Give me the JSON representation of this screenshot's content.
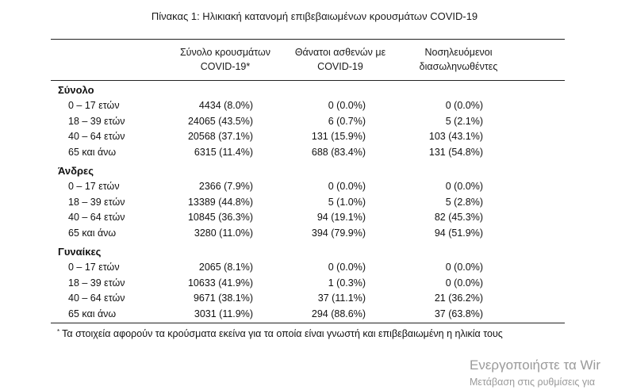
{
  "caption": "Πίνακας 1: Ηλικιακή κατανομή επιβεβαιωμένων κρουσμάτων COVID-19",
  "columns": {
    "total": {
      "line1": "Σύνολο κρουσμάτων",
      "line2": "COVID-19*"
    },
    "deaths": {
      "line1": "Θάνατοι ασθενών με",
      "line2": "COVID-19"
    },
    "hospitalized": {
      "line1": "Νοσηλευόμενοι",
      "line2": "διασωληνωθέντες"
    }
  },
  "groups": [
    {
      "title": "Σύνολο",
      "rows": [
        {
          "label": "0 – 17 ετών",
          "total": "4434 (8.0%)",
          "deaths": "0 (0.0%)",
          "hospitalized": "0 (0.0%)"
        },
        {
          "label": "18 – 39 ετών",
          "total": "24065 (43.5%)",
          "deaths": "6 (0.7%)",
          "hospitalized": "5 (2.1%)"
        },
        {
          "label": "40 – 64 ετών",
          "total": "20568 (37.1%)",
          "deaths": "131 (15.9%)",
          "hospitalized": "103 (43.1%)"
        },
        {
          "label": "65 και άνω",
          "total": "6315 (11.4%)",
          "deaths": "688 (83.4%)",
          "hospitalized": "131 (54.8%)"
        }
      ]
    },
    {
      "title": "Άνδρες",
      "rows": [
        {
          "label": "0 – 17 ετών",
          "total": "2366 (7.9%)",
          "deaths": "0 (0.0%)",
          "hospitalized": "0 (0.0%)"
        },
        {
          "label": "18 – 39 ετών",
          "total": "13389 (44.8%)",
          "deaths": "5 (1.0%)",
          "hospitalized": "5 (2.8%)"
        },
        {
          "label": "40 – 64 ετών",
          "total": "10845 (36.3%)",
          "deaths": "94 (19.1%)",
          "hospitalized": "82 (45.3%)"
        },
        {
          "label": "65 και άνω",
          "total": "3280 (11.0%)",
          "deaths": "394 (79.9%)",
          "hospitalized": "94 (51.9%)"
        }
      ]
    },
    {
      "title": "Γυναίκες",
      "rows": [
        {
          "label": "0 – 17 ετών",
          "total": "2065 (8.1%)",
          "deaths": "0 (0.0%)",
          "hospitalized": "0 (0.0%)"
        },
        {
          "label": "18 – 39 ετών",
          "total": "10633 (41.9%)",
          "deaths": "1 (0.3%)",
          "hospitalized": "0 (0.0%)"
        },
        {
          "label": "40 – 64 ετών",
          "total": "9671 (38.1%)",
          "deaths": "37 (11.1%)",
          "hospitalized": "21 (36.2%)"
        },
        {
          "label": "65 και άνω",
          "total": "3031 (11.9%)",
          "deaths": "294 (88.6%)",
          "hospitalized": "37 (63.8%)"
        }
      ]
    }
  ],
  "footnote": {
    "marker": "*",
    "text": "Τα στοιχεία αφορούν τα κρούσματα εκείνα για τα οποία είναι γνωστή και επιβεβαιωμένη η ηλικία τους"
  },
  "watermark": {
    "line1": "Ενεργοποιήστε τα Wir",
    "line2": "Μετάβαση στις ρυθμίσεις για"
  }
}
